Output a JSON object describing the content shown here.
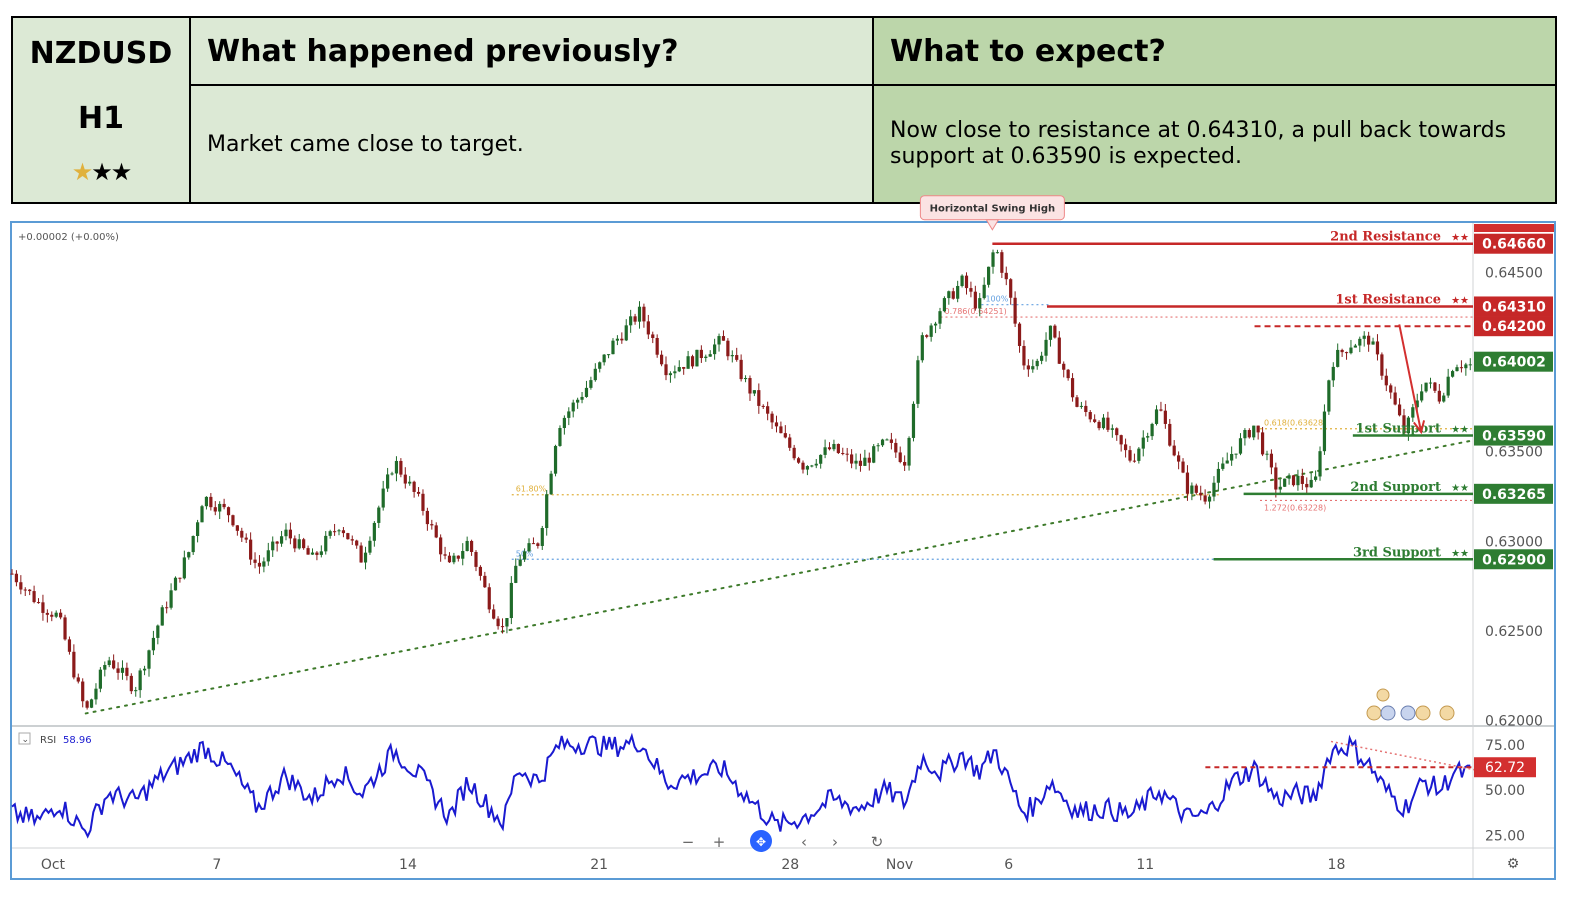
{
  "header": {
    "pair": "NZDUSD",
    "timeframe": "H1",
    "rating_stars": 3,
    "rating_filled_gold": 1,
    "prev_title": "What happened previously?",
    "prev_text": "Market came close to target.",
    "expect_title": "What to expect?",
    "expect_text": "Now close to resistance at 0.64310, a pull back towards support at 0.63590 is expected."
  },
  "chart_data": {
    "type": "line",
    "title": "",
    "change_label": "+0.00002 (+0.00%)",
    "x_ticks": [
      {
        "label": "Oct",
        "day": 1
      },
      {
        "label": "7",
        "day": 7
      },
      {
        "label": "14",
        "day": 14
      },
      {
        "label": "21",
        "day": 21
      },
      {
        "label": "28",
        "day": 28
      },
      {
        "label": "Nov",
        "day": 32
      },
      {
        "label": "6",
        "day": 36
      },
      {
        "label": "11",
        "day": 41
      },
      {
        "label": "18",
        "day": 48
      }
    ],
    "xlim": [
      -0.5,
      53
    ],
    "ylim": [
      0.6197,
      0.6477
    ],
    "y_ticks": [
      "0.64500",
      "0.63500",
      "0.63000",
      "0.62500",
      "0.62000"
    ],
    "y_tick_values": [
      0.645,
      0.635,
      0.63,
      0.625,
      0.62
    ],
    "price_path": [
      [
        -0.5,
        0.6282
      ],
      [
        0.5,
        0.6265
      ],
      [
        1.2,
        0.6258
      ],
      [
        2.2,
        0.6204
      ],
      [
        3.0,
        0.6235
      ],
      [
        4.0,
        0.6218
      ],
      [
        5.0,
        0.626
      ],
      [
        6.0,
        0.6295
      ],
      [
        6.5,
        0.6325
      ],
      [
        7.5,
        0.6315
      ],
      [
        8.5,
        0.6285
      ],
      [
        9.5,
        0.6305
      ],
      [
        10.5,
        0.629
      ],
      [
        11.5,
        0.631
      ],
      [
        12.3,
        0.629
      ],
      [
        13.5,
        0.6345
      ],
      [
        14.5,
        0.632
      ],
      [
        15.5,
        0.6285
      ],
      [
        16.2,
        0.63
      ],
      [
        17.0,
        0.6265
      ],
      [
        17.5,
        0.625
      ],
      [
        18.0,
        0.629
      ],
      [
        18.8,
        0.63
      ],
      [
        19.5,
        0.6365
      ],
      [
        20.5,
        0.6385
      ],
      [
        21.5,
        0.641
      ],
      [
        22.5,
        0.6428
      ],
      [
        23.5,
        0.6395
      ],
      [
        24.5,
        0.6402
      ],
      [
        25.5,
        0.6412
      ],
      [
        26.5,
        0.6385
      ],
      [
        27.5,
        0.6362
      ],
      [
        28.5,
        0.6342
      ],
      [
        29.5,
        0.6352
      ],
      [
        30.5,
        0.6342
      ],
      [
        31.5,
        0.6355
      ],
      [
        32.2,
        0.6345
      ],
      [
        32.8,
        0.6412
      ],
      [
        33.5,
        0.643
      ],
      [
        34.3,
        0.6445
      ],
      [
        34.9,
        0.643
      ],
      [
        35.5,
        0.6465
      ],
      [
        36.0,
        0.644
      ],
      [
        36.5,
        0.64
      ],
      [
        37.0,
        0.6398
      ],
      [
        37.5,
        0.6418
      ],
      [
        38.5,
        0.6375
      ],
      [
        39.5,
        0.6365
      ],
      [
        40.5,
        0.6345
      ],
      [
        41.5,
        0.6375
      ],
      [
        42.5,
        0.633
      ],
      [
        43.2,
        0.6325
      ],
      [
        44.2,
        0.635
      ],
      [
        45.0,
        0.6365
      ],
      [
        45.8,
        0.633
      ],
      [
        46.5,
        0.6335
      ],
      [
        47.2,
        0.633
      ],
      [
        47.8,
        0.64
      ],
      [
        48.5,
        0.641
      ],
      [
        49.2,
        0.6413
      ],
      [
        49.8,
        0.639
      ],
      [
        50.5,
        0.636
      ],
      [
        51.2,
        0.639
      ],
      [
        51.8,
        0.638
      ],
      [
        52.3,
        0.64
      ],
      [
        52.9,
        0.6398
      ]
    ],
    "levels": [
      {
        "name": "2nd Resistance",
        "stars": "★★",
        "value": 0.6466,
        "label": "0.64660",
        "color": "#c62828",
        "x_from": 35.4
      },
      {
        "name": "1st Resistance",
        "stars": "★★",
        "value": 0.6431,
        "label": "0.64310",
        "color": "#c62828",
        "x_from": 37.4
      },
      {
        "name": "1st Support",
        "stars": "★★",
        "value": 0.6359,
        "label": "0.63590",
        "color": "#2e7d32",
        "x_from": 48.6
      },
      {
        "name": "2nd Support",
        "stars": "★★",
        "value": 0.63265,
        "label": "0.63265",
        "color": "#2e7d32",
        "x_from": 44.6
      },
      {
        "name": "3rd Support",
        "stars": "★★",
        "value": 0.629,
        "label": "0.62900",
        "color": "#2e7d32",
        "x_from": 43.5
      }
    ],
    "dashed_level": {
      "value": 0.642,
      "label": "0.64200",
      "x_from": 45.0
    },
    "current_price": {
      "value": 0.64002,
      "label": "0.64002"
    },
    "fib_lines": [
      {
        "value": 0.6326,
        "label": "61.80%",
        "x_from": 17.8,
        "x_to": 43.8,
        "color": "#e0b13d"
      },
      {
        "value": 0.629,
        "label": "50%",
        "x_from": 17.8,
        "x_to": 43.5,
        "color": "#64a0e0"
      },
      {
        "value": 0.64251,
        "label": "0.786(0.64251)",
        "x_from": 33.5,
        "x_to": 53.0,
        "color": "#e57373"
      },
      {
        "value": 0.6432,
        "label": "100%",
        "x_from": 35.0,
        "x_to": 37.5,
        "color": "#64a0e0"
      },
      {
        "value": 0.63628,
        "label": "0.618(0.63628)",
        "x_from": 45.2,
        "x_to": 53.0,
        "color": "#e0b13d"
      },
      {
        "value": 0.63228,
        "label": "1.272(0.63228)",
        "x_from": 45.2,
        "x_to": 53.0,
        "color": "#e57373"
      }
    ],
    "trendline": {
      "x1": 2.2,
      "y1": 0.6204,
      "x2": 52.9,
      "y2": 0.6356
    },
    "arrow": {
      "x1": 50.3,
      "y1": 0.6421,
      "x2": 51.1,
      "y2": 0.6361
    },
    "annotation": {
      "text": "Horizontal Swing High",
      "x": 35.4,
      "value": 0.6466
    },
    "rsi": {
      "label": "RSI",
      "last_value": "58.96",
      "marker_value": 62.72,
      "marker_label": "62.72",
      "ylim": [
        18,
        85
      ],
      "y_ticks": [
        "75.00",
        "50.00",
        "25.00"
      ],
      "y_tick_values": [
        75,
        50,
        25
      ],
      "path": [
        [
          -0.5,
          37
        ],
        [
          0.5,
          33
        ],
        [
          1.2,
          43
        ],
        [
          2.2,
          27
        ],
        [
          3.0,
          48
        ],
        [
          4.0,
          44
        ],
        [
          5.0,
          58
        ],
        [
          6.0,
          68
        ],
        [
          6.5,
          74
        ],
        [
          7.5,
          62
        ],
        [
          8.5,
          40
        ],
        [
          9.5,
          58
        ],
        [
          10.5,
          45
        ],
        [
          11.5,
          61
        ],
        [
          12.3,
          48
        ],
        [
          13.5,
          72
        ],
        [
          14.5,
          57
        ],
        [
          15.5,
          35
        ],
        [
          16.2,
          55
        ],
        [
          17.0,
          40
        ],
        [
          17.5,
          32
        ],
        [
          18.0,
          62
        ],
        [
          18.8,
          55
        ],
        [
          19.5,
          75
        ],
        [
          20.5,
          76
        ],
        [
          21.5,
          74
        ],
        [
          22.5,
          77
        ],
        [
          23.5,
          54
        ],
        [
          24.5,
          58
        ],
        [
          25.5,
          62
        ],
        [
          26.5,
          45
        ],
        [
          27.5,
          30
        ],
        [
          28.5,
          35
        ],
        [
          29.5,
          45
        ],
        [
          30.5,
          40
        ],
        [
          31.5,
          50
        ],
        [
          32.2,
          43
        ],
        [
          32.8,
          68
        ],
        [
          33.5,
          60
        ],
        [
          34.3,
          70
        ],
        [
          34.9,
          60
        ],
        [
          35.5,
          72
        ],
        [
          36.0,
          55
        ],
        [
          36.5,
          38
        ],
        [
          37.0,
          42
        ],
        [
          37.5,
          55
        ],
        [
          38.5,
          38
        ],
        [
          39.5,
          40
        ],
        [
          40.5,
          36
        ],
        [
          41.5,
          50
        ],
        [
          42.5,
          35
        ],
        [
          43.2,
          36
        ],
        [
          44.2,
          55
        ],
        [
          45.0,
          62
        ],
        [
          45.8,
          45
        ],
        [
          46.5,
          48
        ],
        [
          47.2,
          46
        ],
        [
          47.8,
          72
        ],
        [
          48.5,
          75
        ],
        [
          49.2,
          64
        ],
        [
          49.8,
          50
        ],
        [
          50.5,
          40
        ],
        [
          51.2,
          55
        ],
        [
          51.8,
          50
        ],
        [
          52.3,
          60
        ],
        [
          52.9,
          59
        ]
      ],
      "dashed_level": {
        "value": 62.72,
        "x_from": 43.2
      },
      "trendline": {
        "x1": 47.8,
        "y1": 77,
        "x2": 53.5,
        "y2": 60
      }
    }
  }
}
